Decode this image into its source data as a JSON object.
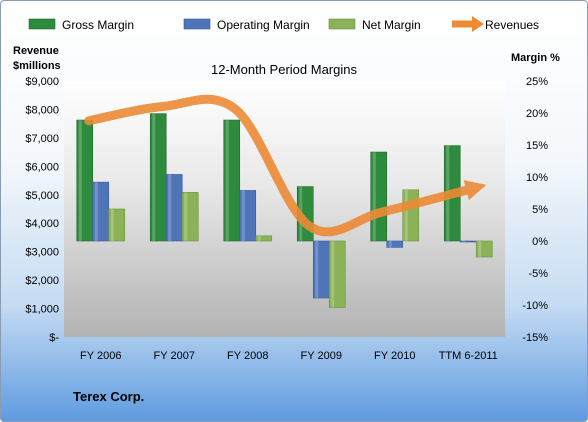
{
  "chart_data": {
    "type": "bar",
    "title": "12-Month Period Margins",
    "categories": [
      "FY 2006",
      "FY 2007",
      "FY 2008",
      "FY 2009",
      "FY 2010",
      "TTM 6-2011"
    ],
    "y_left": {
      "label_lines": [
        "Revenue",
        "$millions"
      ],
      "range": [
        0,
        9000
      ],
      "ticks": [
        0,
        1000,
        2000,
        3000,
        4000,
        5000,
        6000,
        7000,
        8000,
        9000
      ],
      "tick_labels": [
        "$-",
        "$1,000",
        "$2,000",
        "$3,000",
        "$4,000",
        "$5,000",
        "$6,000",
        "$7,000",
        "$8,000",
        "$9,000"
      ]
    },
    "y_right": {
      "label": "Margin %",
      "range": [
        -15,
        25
      ],
      "ticks": [
        -15,
        -10,
        -5,
        0,
        5,
        10,
        15,
        20,
        25
      ],
      "tick_labels": [
        "-15%",
        "-10%",
        "-5%",
        "0%",
        "5%",
        "10%",
        "15%",
        "20%",
        "25%"
      ]
    },
    "series": [
      {
        "name": "Gross Margin",
        "kind": "bar",
        "axis": "right",
        "color": "#2e8b3e",
        "values": [
          18.9,
          19.9,
          18.9,
          8.5,
          13.9,
          14.9
        ]
      },
      {
        "name": "Operating Margin",
        "kind": "bar",
        "axis": "right",
        "color": "#4f74b8",
        "values": [
          9.2,
          10.4,
          7.9,
          -8.9,
          -1.0,
          -0.1
        ]
      },
      {
        "name": "Net Margin",
        "kind": "bar",
        "axis": "right",
        "color": "#8bb256",
        "values": [
          5.0,
          7.6,
          0.8,
          -10.4,
          8.0,
          -2.5
        ]
      },
      {
        "name": "Revenues",
        "kind": "line",
        "axis": "left",
        "color": "#ec8a35",
        "values": [
          7600,
          8100,
          8000,
          3900,
          4400,
          5200
        ]
      }
    ],
    "legend": {
      "position": "top"
    },
    "grid": false
  },
  "company": "Terex Corp."
}
